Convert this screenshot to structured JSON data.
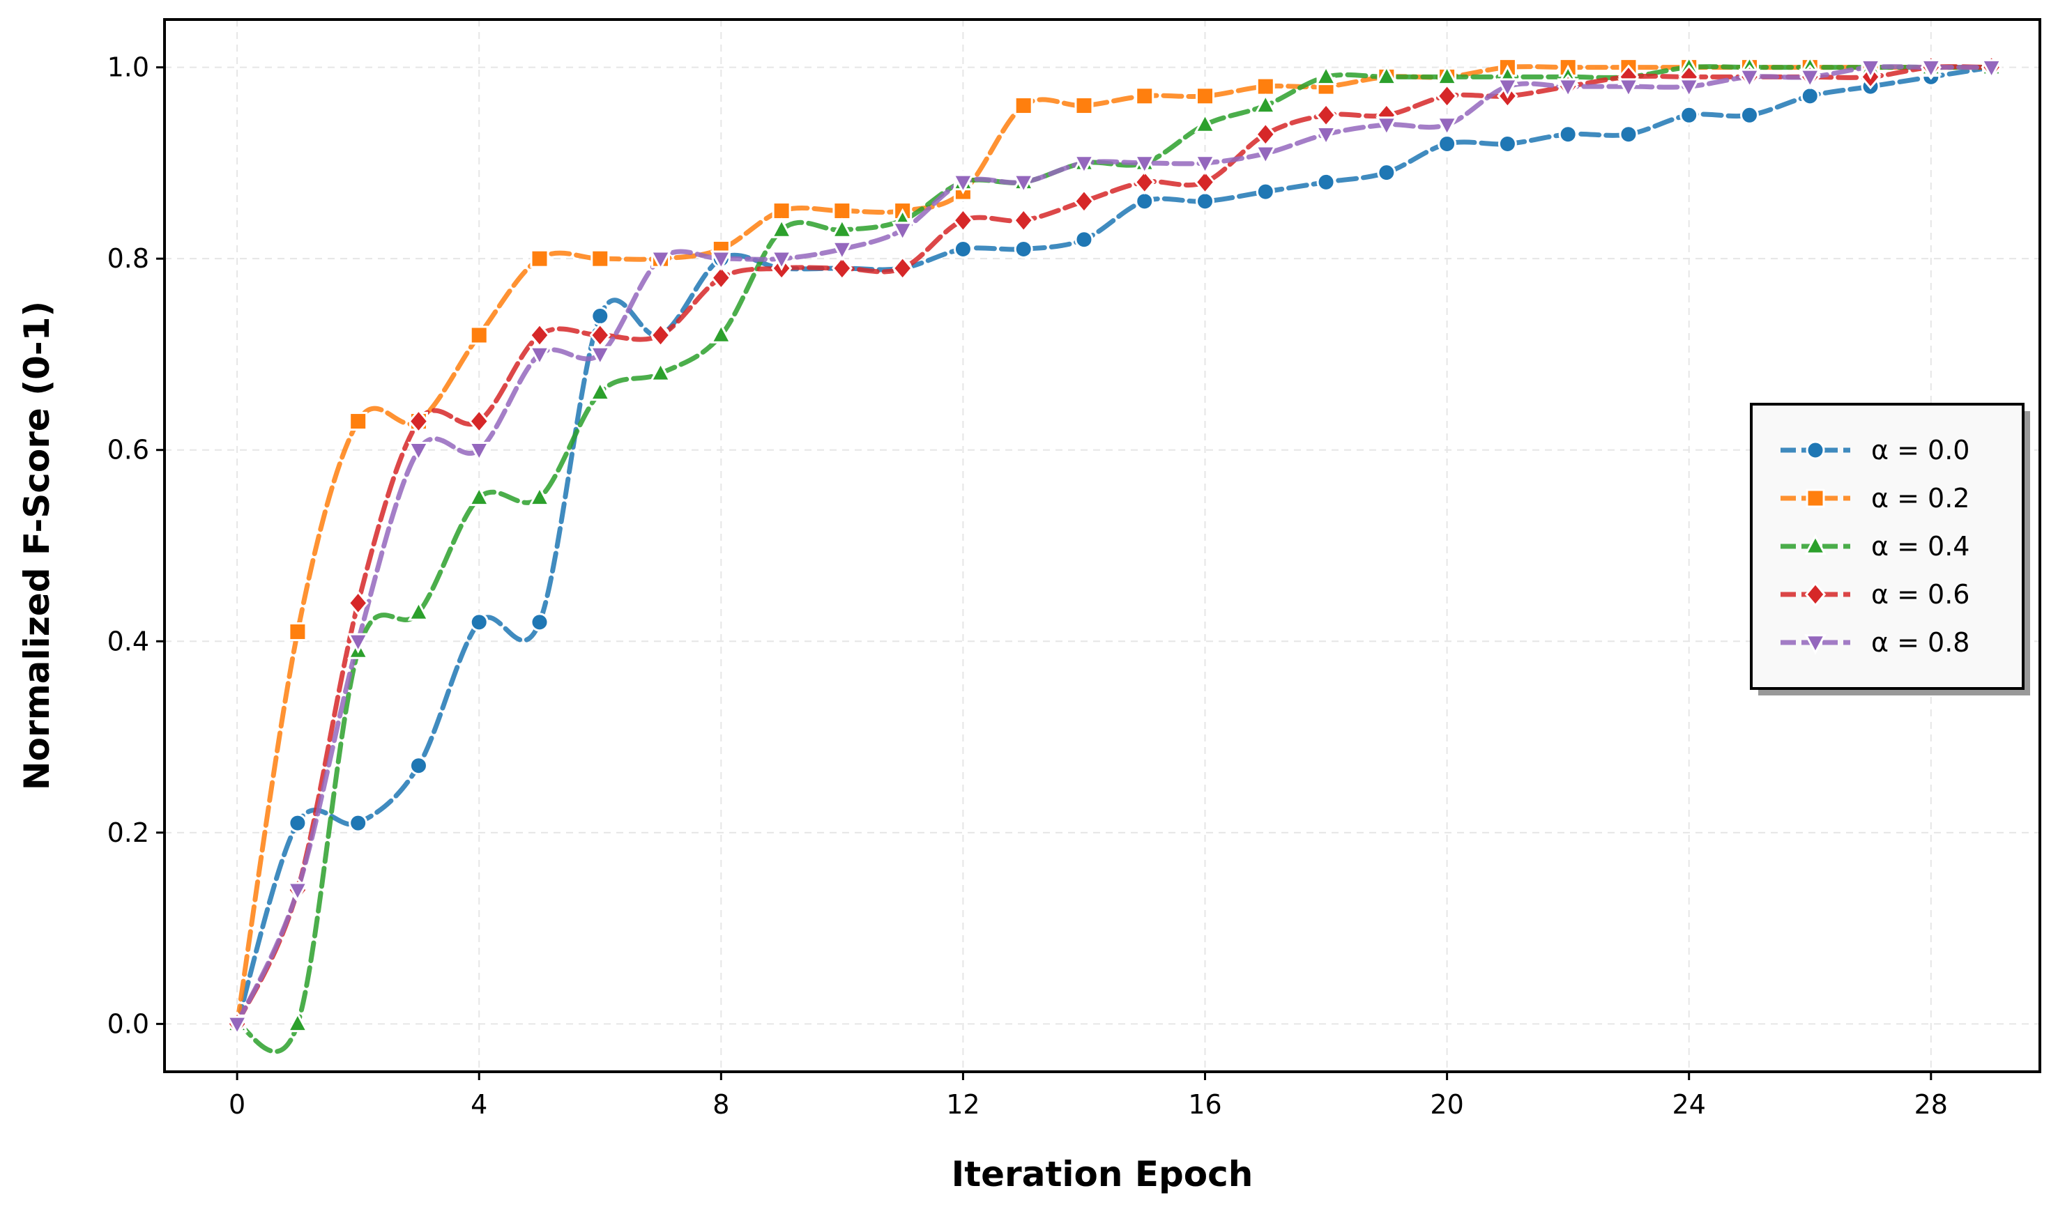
{
  "chart_data": {
    "type": "line",
    "xlabel": "Iteration Epoch",
    "ylabel": "Normalized F-Score (0-1)",
    "xlim": [
      -1.2,
      29.8
    ],
    "ylim": [
      -0.05,
      1.05
    ],
    "xticks": [
      0,
      4,
      8,
      12,
      16,
      20,
      24,
      28
    ],
    "yticks": [
      0.0,
      0.2,
      0.4,
      0.6,
      0.8,
      1.0
    ],
    "grid": true,
    "legend_position": "center-right",
    "x": [
      0,
      1,
      2,
      3,
      4,
      5,
      6,
      7,
      8,
      9,
      10,
      11,
      12,
      13,
      14,
      15,
      16,
      17,
      18,
      19,
      20,
      21,
      22,
      23,
      24,
      25,
      26,
      27,
      28,
      29
    ],
    "series": [
      {
        "name": "α = 0.0",
        "color": "#1f77b4",
        "marker": "circle",
        "values": [
          0.0,
          0.21,
          0.21,
          0.27,
          0.42,
          0.42,
          0.74,
          0.72,
          0.8,
          0.79,
          0.79,
          0.79,
          0.81,
          0.81,
          0.82,
          0.86,
          0.86,
          0.87,
          0.88,
          0.89,
          0.92,
          0.92,
          0.93,
          0.93,
          0.95,
          0.95,
          0.97,
          0.98,
          0.99,
          1.0
        ]
      },
      {
        "name": "α = 0.2",
        "color": "#ff7f0e",
        "marker": "square",
        "values": [
          0.0,
          0.41,
          0.63,
          0.63,
          0.72,
          0.8,
          0.8,
          0.8,
          0.81,
          0.85,
          0.85,
          0.85,
          0.87,
          0.96,
          0.96,
          0.97,
          0.97,
          0.98,
          0.98,
          0.99,
          0.99,
          1.0,
          1.0,
          1.0,
          1.0,
          1.0,
          1.0,
          1.0,
          1.0,
          1.0
        ]
      },
      {
        "name": "α = 0.4",
        "color": "#2ca02c",
        "marker": "triangle-up",
        "values": [
          0.0,
          0.0,
          0.39,
          0.43,
          0.55,
          0.55,
          0.66,
          0.68,
          0.72,
          0.83,
          0.83,
          0.84,
          0.88,
          0.88,
          0.9,
          0.9,
          0.94,
          0.96,
          0.99,
          0.99,
          0.99,
          0.99,
          0.99,
          0.99,
          1.0,
          1.0,
          1.0,
          1.0,
          1.0,
          1.0
        ]
      },
      {
        "name": "α = 0.6",
        "color": "#d62728",
        "marker": "diamond",
        "values": [
          0.0,
          0.14,
          0.44,
          0.63,
          0.63,
          0.72,
          0.72,
          0.72,
          0.78,
          0.79,
          0.79,
          0.79,
          0.84,
          0.84,
          0.86,
          0.88,
          0.88,
          0.93,
          0.95,
          0.95,
          0.97,
          0.97,
          0.98,
          0.99,
          0.99,
          0.99,
          0.99,
          0.99,
          1.0,
          1.0
        ]
      },
      {
        "name": "α = 0.8",
        "color": "#9467bd",
        "marker": "triangle-down",
        "values": [
          0.0,
          0.14,
          0.4,
          0.6,
          0.6,
          0.7,
          0.7,
          0.8,
          0.8,
          0.8,
          0.81,
          0.83,
          0.88,
          0.88,
          0.9,
          0.9,
          0.9,
          0.91,
          0.93,
          0.94,
          0.94,
          0.98,
          0.98,
          0.98,
          0.98,
          0.99,
          0.99,
          1.0,
          1.0,
          1.0
        ]
      }
    ]
  }
}
